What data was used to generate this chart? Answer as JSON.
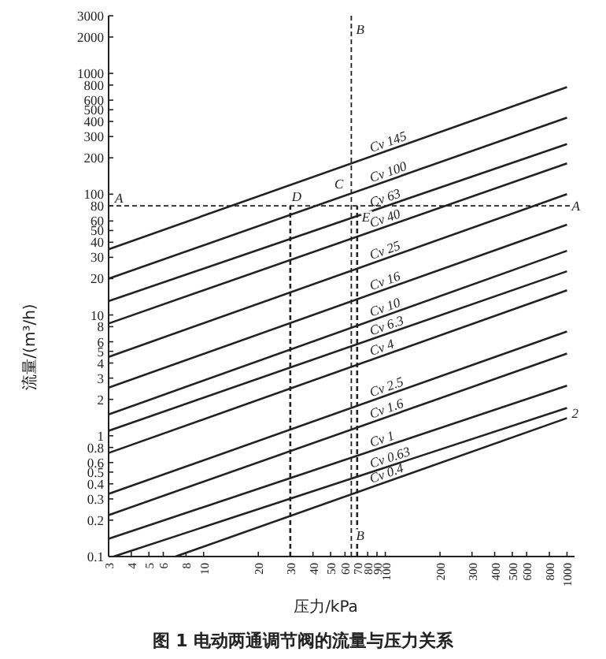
{
  "chart_data": {
    "type": "line",
    "title": "图 1  电动两通调节阀的流量与压力关系",
    "xlabel": "压力/kPa",
    "ylabel": "流量/(m³/h)",
    "log": "xy",
    "xlim": [
      3,
      1100
    ],
    "ylim": [
      0.1,
      3000
    ],
    "xticks": [
      3,
      4,
      5,
      6,
      8,
      10,
      20,
      30,
      40,
      50,
      60,
      70,
      80,
      90,
      100,
      200,
      300,
      400,
      500,
      600,
      800,
      1000
    ],
    "yticks": [
      0.1,
      0.2,
      0.3,
      0.4,
      0.5,
      0.6,
      0.8,
      1,
      2,
      3,
      4,
      5,
      6,
      8,
      10,
      20,
      30,
      40,
      50,
      60,
      80,
      100,
      200,
      300,
      400,
      500,
      600,
      800,
      1000,
      2000,
      3000
    ],
    "x": [
      3,
      1000
    ],
    "series": [
      {
        "name": "Cv 145",
        "color": "#222222",
        "values": [
          35,
          770
        ]
      },
      {
        "name": "Cv 100",
        "color": "#222222",
        "values": [
          20,
          430
        ]
      },
      {
        "name": "Cv 63",
        "color": "#222222",
        "values": [
          13,
          260
        ]
      },
      {
        "name": "Cv 40",
        "color": "#222222",
        "values": [
          8.5,
          180
        ]
      },
      {
        "name": "Cv 25",
        "color": "#222222",
        "values": [
          4.5,
          100
        ]
      },
      {
        "name": "Cv 16",
        "color": "#222222",
        "values": [
          2.5,
          56
        ]
      },
      {
        "name": "Cv 10",
        "color": "#222222",
        "values": [
          1.5,
          34
        ]
      },
      {
        "name": "Cv 6.3",
        "color": "#222222",
        "values": [
          1.1,
          23
        ]
      },
      {
        "name": "Cv 4",
        "color": "#222222",
        "values": [
          0.72,
          16
        ]
      },
      {
        "name": "Cv 2.5",
        "color": "#222222",
        "values": [
          0.33,
          7.3
        ]
      },
      {
        "name": "Cv 1.6",
        "color": "#222222",
        "values": [
          0.22,
          4.8
        ]
      },
      {
        "name": "Cv 1",
        "color": "#222222",
        "values": [
          0.14,
          2.6
        ]
      },
      {
        "name": "Cv 0.63",
        "color": "#222222",
        "x": [
          3.2,
          1000
        ],
        "values": [
          0.1,
          1.7
        ]
      },
      {
        "name": "Cv 0.4",
        "color": "#222222",
        "x": [
          7,
          1000
        ],
        "values": [
          0.1,
          1.4
        ]
      },
      {
        "type": "line",
        "color": "#222222",
        "line_style": "dashed",
        "x": [
          30,
          30
        ],
        "values": [
          0.1,
          80
        ]
      },
      {
        "type": "line",
        "color": "#222222",
        "line_style": "dashed",
        "x": [
          70,
          70
        ],
        "values": [
          0.1,
          80
        ]
      }
    ],
    "ref_lines": [
      {
        "axis": "y",
        "value": 80,
        "line_style": "dashed",
        "color": "#222222"
      },
      {
        "axis": "x",
        "value": 65,
        "line_style": "dashed",
        "color": "#222222"
      }
    ],
    "annotations": [
      {
        "text": "A",
        "x": 3,
        "y": 80
      },
      {
        "text": "A",
        "x": 1000,
        "y": 80
      },
      {
        "text": "B",
        "x": 65,
        "y": 2000
      },
      {
        "text": "B",
        "x": 65,
        "y": 0.13
      },
      {
        "text": "C",
        "x": 65,
        "y": 80
      },
      {
        "text": "D",
        "x": 30,
        "y": 80
      },
      {
        "text": "E",
        "x": 70,
        "y": 80
      },
      {
        "text": "2",
        "x": 1000,
        "y": 1.55
      }
    ]
  }
}
